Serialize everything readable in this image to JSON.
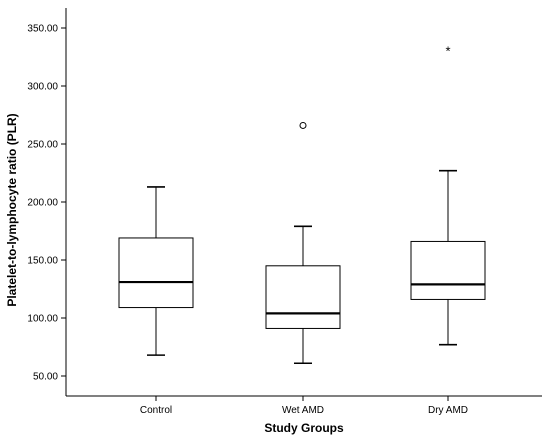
{
  "chart_data": {
    "type": "boxplot",
    "xlabel": "Study Groups",
    "ylabel": "Platelet-to-lymphocyte ratio (PLR)",
    "ylim": [
      30,
      360
    ],
    "y_ticks": [
      50,
      100,
      150,
      200,
      250,
      300,
      350
    ],
    "y_tick_labels": [
      "50.00",
      "100.00",
      "150.00",
      "200.00",
      "250.00",
      "300.00",
      "350.00"
    ],
    "grid": false,
    "categories": [
      "Control",
      "Wet AMD",
      "Dry AMD"
    ],
    "boxes": [
      {
        "category": "Control",
        "whisker_low": 68,
        "q1": 109,
        "median": 131,
        "q3": 169,
        "whisker_high": 213,
        "outliers": [],
        "extremes": []
      },
      {
        "category": "Wet AMD",
        "whisker_low": 61,
        "q1": 91,
        "median": 104,
        "q3": 145,
        "whisker_high": 179,
        "outliers": [
          266
        ],
        "extremes": []
      },
      {
        "category": "Dry AMD",
        "whisker_low": 77,
        "q1": 116,
        "median": 129,
        "q3": 166,
        "whisker_high": 227,
        "outliers": [],
        "extremes": [
          330
        ]
      }
    ]
  }
}
